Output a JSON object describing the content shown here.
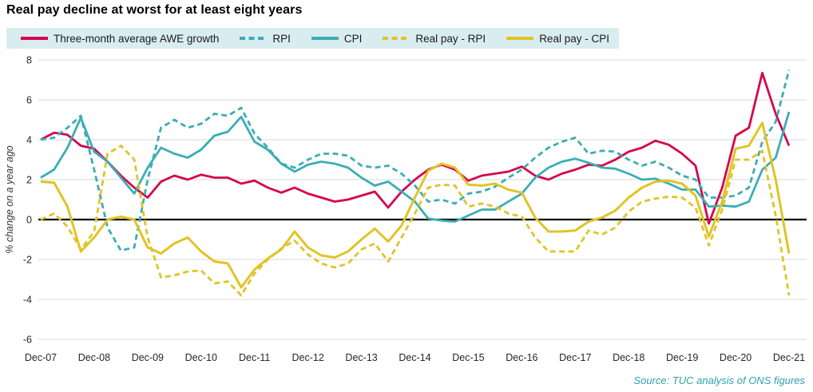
{
  "title": "Real pay decline at worst for at least eight years",
  "source": "Source: TUC analysis  of ONS figures",
  "colors": {
    "awe": "#d4034e",
    "teal": "#3cadb5",
    "yellow": "#e0c426",
    "legend_bg": "#d9edf1",
    "gridline": "#d9d9d9",
    "zero_line": "#000000",
    "axis_text": "#262626",
    "source_text": "#2ea2ac"
  },
  "legend": {
    "items": [
      {
        "label": "Three-month average AWE growth",
        "color": "#d4034e",
        "dash": false
      },
      {
        "label": "RPI",
        "color": "#3cadb5",
        "dash": true
      },
      {
        "label": "CPI",
        "color": "#3cadb5",
        "dash": false
      },
      {
        "label": "Real pay - RPI",
        "color": "#e0c426",
        "dash": true
      },
      {
        "label": "Real pay - CPI",
        "color": "#e0c426",
        "dash": false
      }
    ]
  },
  "y_axis": {
    "label": "% change on a year ago",
    "ticks": [
      8,
      6,
      4,
      2,
      0,
      -2,
      -4,
      -6
    ],
    "min": -6,
    "max": 8
  },
  "x_axis": {
    "ticks": [
      "Dec-07",
      "Dec-08",
      "Dec-09",
      "Dec-10",
      "Dec-11",
      "Dec-12",
      "Dec-13",
      "Dec-14",
      "Dec-15",
      "Dec-16",
      "Dec-17",
      "Dec-18",
      "Dec-19",
      "Dec-20",
      "Dec-21"
    ]
  },
  "chart_data": {
    "type": "line",
    "title": "Real pay decline at worst for at least eight years",
    "ylabel": "% change on a year ago",
    "xlabel": "",
    "ylim": [
      -6,
      8
    ],
    "grid": true,
    "legend_position": "top",
    "x": [
      "Dec-07",
      "Mar-08",
      "Jun-08",
      "Sep-08",
      "Dec-08",
      "Mar-09",
      "Jun-09",
      "Sep-09",
      "Dec-09",
      "Mar-10",
      "Jun-10",
      "Sep-10",
      "Dec-10",
      "Mar-11",
      "Jun-11",
      "Sep-11",
      "Dec-11",
      "Mar-12",
      "Jun-12",
      "Sep-12",
      "Dec-12",
      "Mar-13",
      "Jun-13",
      "Sep-13",
      "Dec-13",
      "Mar-14",
      "Jun-14",
      "Sep-14",
      "Dec-14",
      "Mar-15",
      "Jun-15",
      "Sep-15",
      "Dec-15",
      "Mar-16",
      "Jun-16",
      "Sep-16",
      "Dec-16",
      "Mar-17",
      "Jun-17",
      "Sep-17",
      "Dec-17",
      "Mar-18",
      "Jun-18",
      "Sep-18",
      "Dec-18",
      "Mar-19",
      "Jun-19",
      "Sep-19",
      "Dec-19",
      "Mar-20",
      "Jun-20",
      "Sep-20",
      "Dec-20",
      "Mar-21",
      "Jun-21",
      "Sep-21",
      "Dec-21"
    ],
    "series": [
      {
        "name": "Three-month average AWE growth",
        "color": "#d4034e",
        "dash": false,
        "width": 2.8,
        "values": [
          4.0,
          4.35,
          4.25,
          3.7,
          3.55,
          2.9,
          2.2,
          1.6,
          1.1,
          1.9,
          2.2,
          2.0,
          2.25,
          2.1,
          2.1,
          1.8,
          1.95,
          1.6,
          1.35,
          1.6,
          1.3,
          1.1,
          0.9,
          1.0,
          1.2,
          1.4,
          0.6,
          1.4,
          2.0,
          2.5,
          2.75,
          2.5,
          1.95,
          2.2,
          2.3,
          2.4,
          2.65,
          2.2,
          2.0,
          2.3,
          2.5,
          2.75,
          2.7,
          3.0,
          3.4,
          3.6,
          3.95,
          3.75,
          3.3,
          2.7,
          -0.2,
          1.6,
          4.2,
          4.6,
          7.35,
          5.3,
          3.7
        ]
      },
      {
        "name": "RPI",
        "color": "#3cadb5",
        "dash": true,
        "width": 2.8,
        "values": [
          4.0,
          4.1,
          4.6,
          5.2,
          2.5,
          -0.4,
          -1.55,
          -1.4,
          2.0,
          4.6,
          5.0,
          4.6,
          4.8,
          5.3,
          5.2,
          5.6,
          4.3,
          3.6,
          2.8,
          2.6,
          3.0,
          3.3,
          3.3,
          3.2,
          2.7,
          2.6,
          2.7,
          2.3,
          1.7,
          0.9,
          1.0,
          0.8,
          1.3,
          1.4,
          1.65,
          2.1,
          2.5,
          3.1,
          3.6,
          3.9,
          4.1,
          3.3,
          3.45,
          3.4,
          3.0,
          2.7,
          2.9,
          2.6,
          2.2,
          2.0,
          1.1,
          1.1,
          1.2,
          1.6,
          3.9,
          4.9,
          7.5
        ]
      },
      {
        "name": "CPI",
        "color": "#3cadb5",
        "dash": false,
        "width": 2.8,
        "values": [
          2.1,
          2.5,
          3.6,
          5.1,
          3.4,
          2.9,
          2.1,
          1.3,
          2.6,
          3.6,
          3.3,
          3.1,
          3.5,
          4.2,
          4.4,
          5.15,
          3.9,
          3.5,
          2.8,
          2.4,
          2.75,
          2.9,
          2.8,
          2.6,
          2.1,
          1.7,
          1.9,
          1.4,
          0.9,
          0.05,
          -0.05,
          -0.1,
          0.2,
          0.5,
          0.5,
          0.9,
          1.3,
          2.1,
          2.6,
          2.9,
          3.05,
          2.85,
          2.6,
          2.55,
          2.3,
          2.0,
          2.05,
          1.8,
          1.5,
          1.5,
          0.65,
          0.7,
          0.65,
          0.9,
          2.5,
          3.1,
          5.4
        ]
      },
      {
        "name": "Real pay - RPI",
        "color": "#e0c426",
        "dash": true,
        "width": 2.8,
        "values": [
          0.0,
          0.3,
          -0.35,
          -1.5,
          -0.6,
          3.3,
          3.7,
          3.0,
          -0.9,
          -2.9,
          -2.8,
          -2.6,
          -2.55,
          -3.2,
          -3.1,
          -3.8,
          -2.7,
          -2.0,
          -1.45,
          -1.05,
          -1.75,
          -2.2,
          -2.4,
          -2.2,
          -1.5,
          -1.2,
          -2.1,
          -0.9,
          0.3,
          1.6,
          1.75,
          1.7,
          0.65,
          0.8,
          0.65,
          0.3,
          0.15,
          -0.9,
          -1.6,
          -1.6,
          -1.6,
          -0.55,
          -0.75,
          -0.4,
          0.4,
          0.9,
          1.05,
          1.15,
          1.1,
          0.6,
          -1.3,
          0.5,
          3.0,
          3.0,
          3.45,
          0.2,
          -3.8
        ]
      },
      {
        "name": "Real pay - CPI",
        "color": "#e0c426",
        "dash": false,
        "width": 3.0,
        "values": [
          1.9,
          1.85,
          0.65,
          -1.6,
          -0.9,
          0.0,
          0.15,
          0.0,
          -1.4,
          -1.7,
          -1.2,
          -0.9,
          -1.6,
          -2.1,
          -2.2,
          -3.4,
          -2.5,
          -1.95,
          -1.5,
          -0.6,
          -1.4,
          -1.8,
          -1.9,
          -1.6,
          -1.0,
          -0.45,
          -1.1,
          -0.3,
          1.1,
          2.45,
          2.8,
          2.6,
          1.75,
          1.7,
          1.8,
          1.5,
          1.35,
          0.1,
          -0.6,
          -0.6,
          -0.55,
          -0.1,
          0.1,
          0.45,
          1.1,
          1.6,
          1.9,
          1.95,
          1.8,
          1.2,
          -0.85,
          0.9,
          3.55,
          3.7,
          4.85,
          2.0,
          -1.7
        ]
      }
    ]
  }
}
